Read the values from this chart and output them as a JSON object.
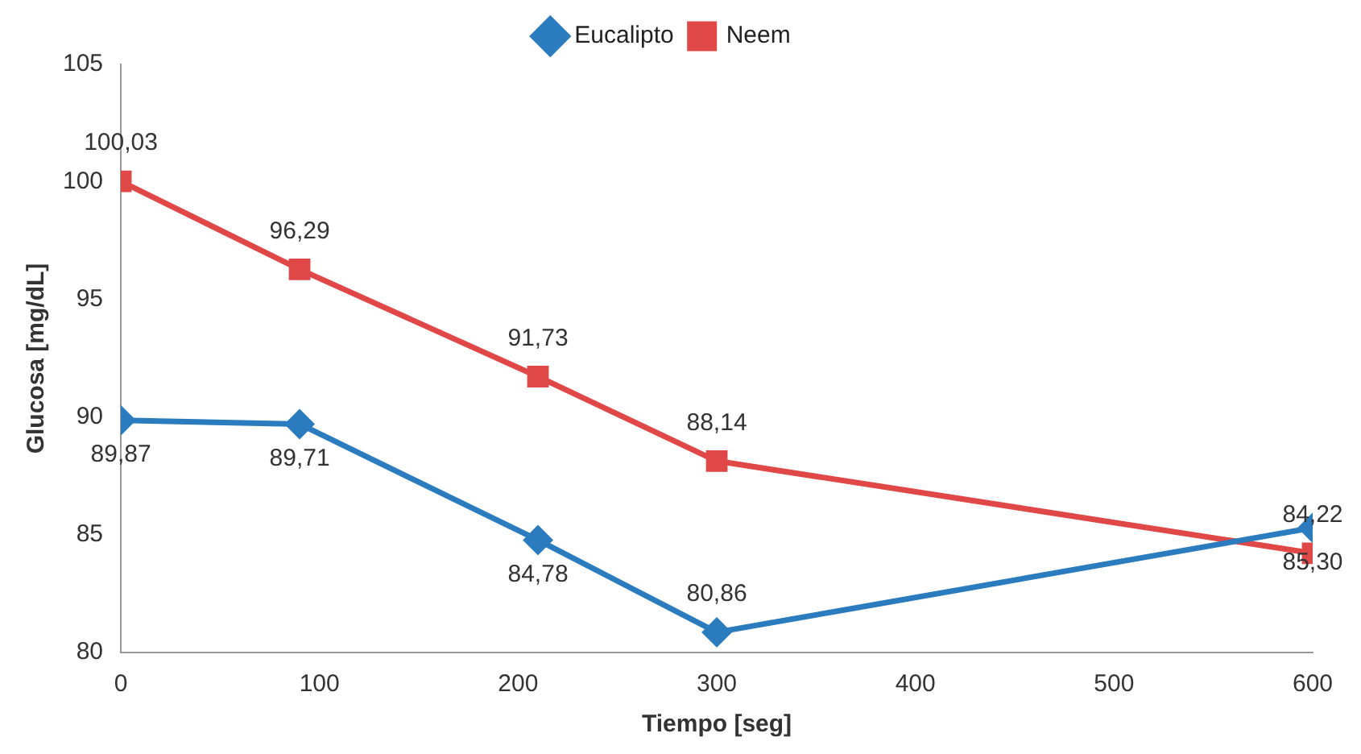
{
  "chart_data": {
    "type": "line",
    "xlabel": "Tiempo [seg]",
    "ylabel": "Glucosa [mg/dL]",
    "x": [
      0,
      90,
      210,
      300,
      600
    ],
    "series": [
      {
        "name": "Eucalipto",
        "color": "#2b7bbf",
        "marker": "diamond",
        "values": [
          89.87,
          89.71,
          84.78,
          80.86,
          85.3
        ],
        "value_labels": [
          "89,87",
          "89,71",
          "84,78",
          "80,86",
          "85,30"
        ]
      },
      {
        "name": "Neem",
        "color": "#e04848",
        "marker": "square",
        "values": [
          100.03,
          96.29,
          91.73,
          88.14,
          84.22
        ],
        "value_labels": [
          "100,03",
          "96,29",
          "91,73",
          "88,14",
          "84,22"
        ]
      }
    ],
    "xlim": [
      0,
      600
    ],
    "xticks": [
      0,
      100,
      200,
      300,
      400,
      500,
      600
    ],
    "ylim": [
      80,
      105
    ],
    "yticks": [
      80,
      85,
      90,
      95,
      100,
      105
    ],
    "grid": false,
    "legend": "top",
    "line_style": "solid"
  }
}
